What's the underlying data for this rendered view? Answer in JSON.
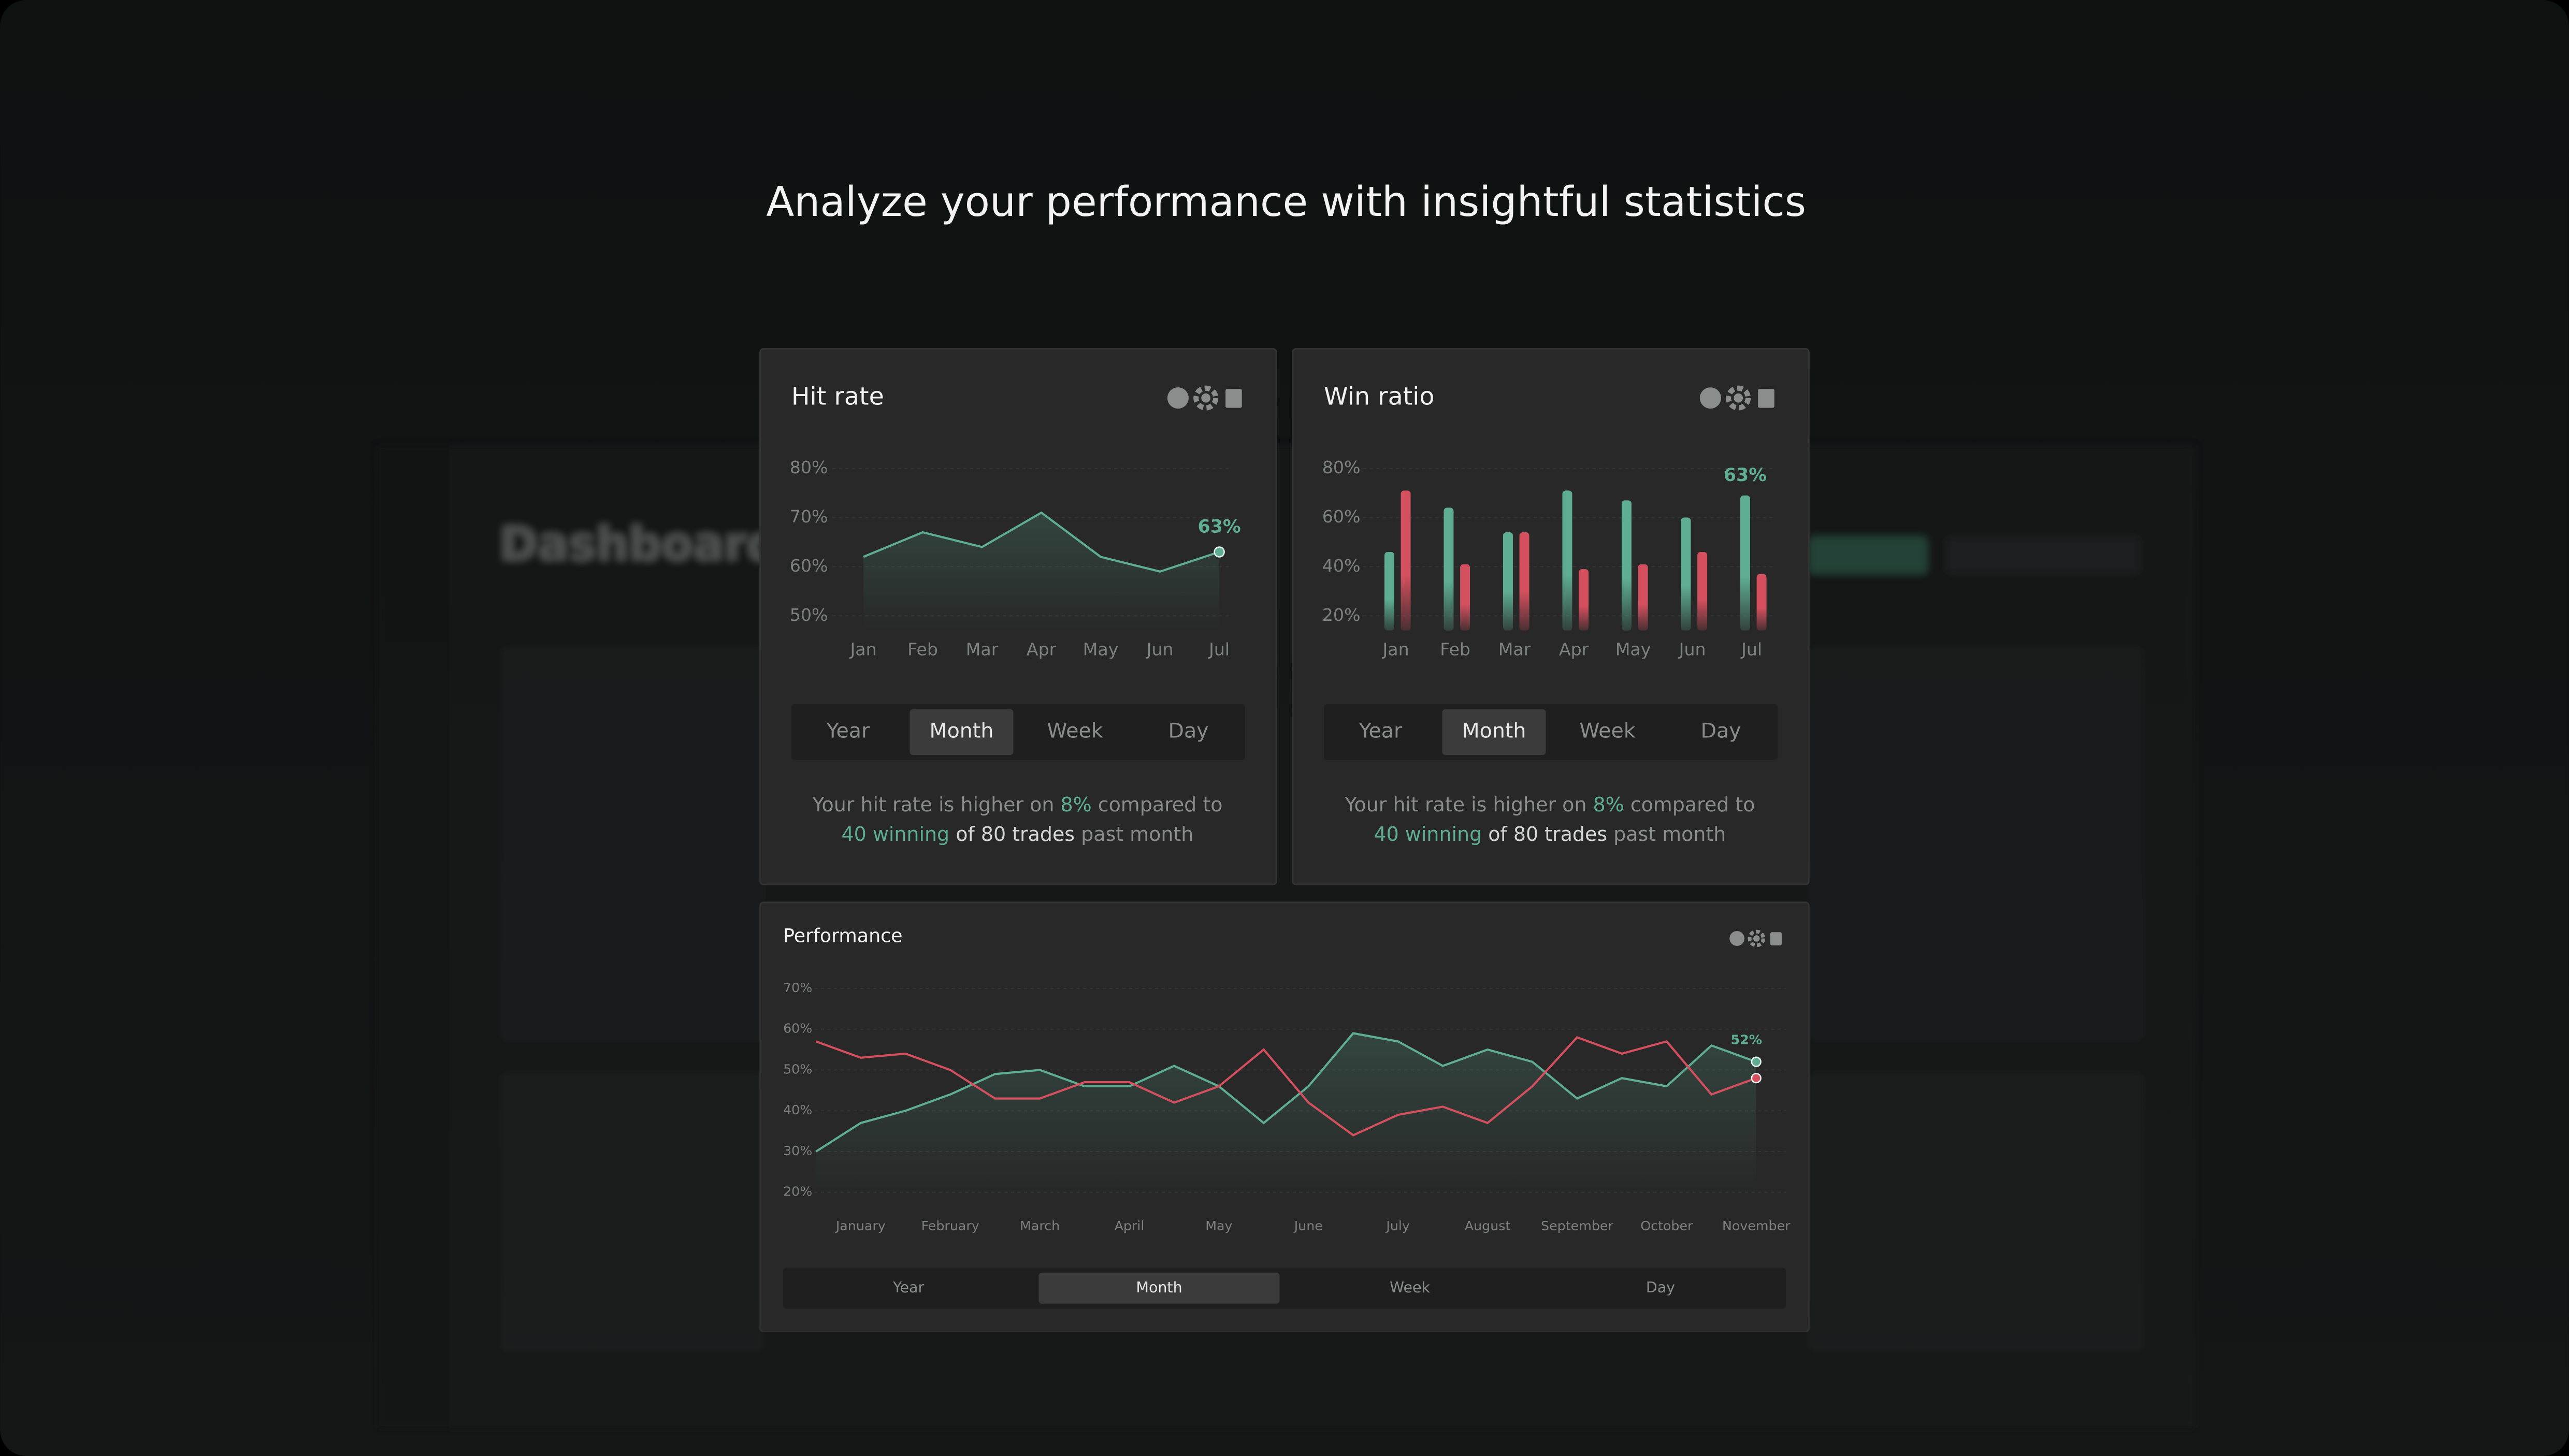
{
  "headline": "Analyze your performance with insightful statistics",
  "background": {
    "title": "Dashboard"
  },
  "chart_data": [
    {
      "type": "line",
      "title": "Hit rate",
      "categories": [
        "Jan",
        "Feb",
        "Mar",
        "Apr",
        "May",
        "Jun",
        "Jul"
      ],
      "values": [
        62,
        67,
        64,
        71,
        62,
        59,
        63
      ],
      "value_labels": [
        null,
        null,
        null,
        null,
        null,
        null,
        "63%"
      ],
      "color": "#5fae94",
      "ylim": [
        47,
        82
      ],
      "yticks": [
        {
          "value": 50,
          "label": "50%"
        },
        {
          "value": 60,
          "label": "60%"
        },
        {
          "value": 70,
          "label": "70%"
        },
        {
          "value": 80,
          "label": "80%"
        }
      ],
      "grid": true,
      "tabs": [
        "Year",
        "Month",
        "Week",
        "Day"
      ],
      "active_tab": 1,
      "summary": [
        [
          "Your hit rate is higher on",
          "8%",
          "compared to"
        ],
        [
          "40 winning",
          "of 80 trades",
          "past month"
        ]
      ]
    },
    {
      "type": "bar",
      "title": "Win ratio",
      "categories": [
        "Jan",
        "Feb",
        "Mar",
        "Apr",
        "May",
        "Jun",
        "Jul"
      ],
      "series": [
        {
          "color": "#5fae94",
          "values": [
            46,
            64,
            54,
            71,
            67,
            60,
            69
          ]
        },
        {
          "color": "#d4505f",
          "values": [
            71,
            41,
            54,
            39,
            41,
            46,
            37
          ]
        }
      ],
      "annotation": "63%",
      "ylim": [
        14,
        84
      ],
      "yticks": [
        {
          "value": 20,
          "label": "20%"
        },
        {
          "value": 40,
          "label": "40%"
        },
        {
          "value": 60,
          "label": "60%"
        },
        {
          "value": 80,
          "label": "80%"
        }
      ],
      "grid": true,
      "tabs": [
        "Year",
        "Month",
        "Week",
        "Day"
      ],
      "active_tab": 1,
      "summary": [
        [
          "Your hit rate is higher on",
          "8%",
          "compared to"
        ],
        [
          "40 winning",
          "of 80 trades",
          "past month"
        ]
      ]
    },
    {
      "type": "line",
      "title": "Performance",
      "categories": [
        null,
        "January",
        null,
        "February",
        null,
        "March",
        null,
        "April",
        null,
        "May",
        null,
        "June",
        null,
        "July",
        null,
        "August",
        null,
        "September",
        null,
        "October",
        null,
        "November"
      ],
      "series": [
        {
          "color": "#5fae94",
          "values": [
            30,
            37,
            40,
            44,
            49,
            50,
            46,
            46,
            51,
            46,
            37,
            46,
            59,
            57,
            51,
            55,
            52,
            43,
            48,
            46,
            56,
            52
          ],
          "value_labels": [
            null,
            null,
            null,
            null,
            null,
            null,
            null,
            null,
            null,
            null,
            null,
            null,
            null,
            null,
            null,
            null,
            null,
            null,
            null,
            null,
            null,
            "52%"
          ]
        },
        {
          "color": "#d4505f",
          "values": [
            57,
            53,
            54,
            50,
            43,
            43,
            47,
            47,
            42,
            46,
            55,
            42,
            34,
            39,
            41,
            37,
            46,
            58,
            54,
            57,
            44,
            48
          ]
        }
      ],
      "ylim": [
        20,
        71
      ],
      "yticks": [
        {
          "value": 20,
          "label": "20%"
        },
        {
          "value": 30,
          "label": "30%"
        },
        {
          "value": 40,
          "label": "40%"
        },
        {
          "value": 50,
          "label": "50%"
        },
        {
          "value": 60,
          "label": "60%"
        },
        {
          "value": 70,
          "label": "70%"
        }
      ],
      "grid": true,
      "tabs": [
        "Year",
        "Month",
        "Week",
        "Day"
      ],
      "active_tab": 1
    }
  ]
}
